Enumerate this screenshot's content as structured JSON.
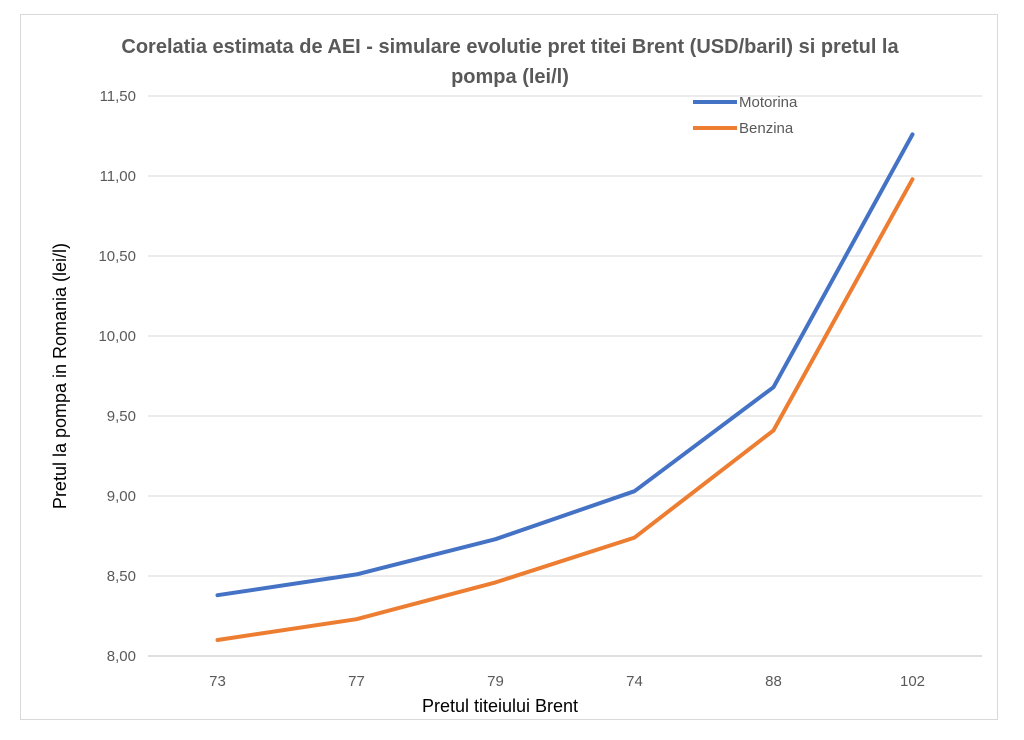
{
  "chart_data": {
    "type": "line",
    "title": "Corelatia estimata de AEI - simulare evolutie pret titei Brent (USD/baril) si pretul la pompa (lei/l)",
    "xlabel": "Pretul titeiului Brent",
    "ylabel": "Pretul la pompa in Romania (lei/l)",
    "categories": [
      "73",
      "77",
      "79",
      "74",
      "88",
      "102"
    ],
    "ylim": [
      8.0,
      11.5
    ],
    "yticks": [
      "8,00",
      "8,50",
      "9,00",
      "9,50",
      "10,00",
      "10,50",
      "11,00",
      "11,50"
    ],
    "grid": true,
    "legend_position": "top-right",
    "series": [
      {
        "name": "Motorina",
        "color": "#4472c4",
        "values": [
          8.38,
          8.51,
          8.73,
          9.03,
          9.68,
          11.26
        ]
      },
      {
        "name": "Benzina",
        "color": "#ed7d31",
        "values": [
          8.1,
          8.23,
          8.46,
          8.74,
          9.41,
          10.98
        ]
      }
    ]
  }
}
